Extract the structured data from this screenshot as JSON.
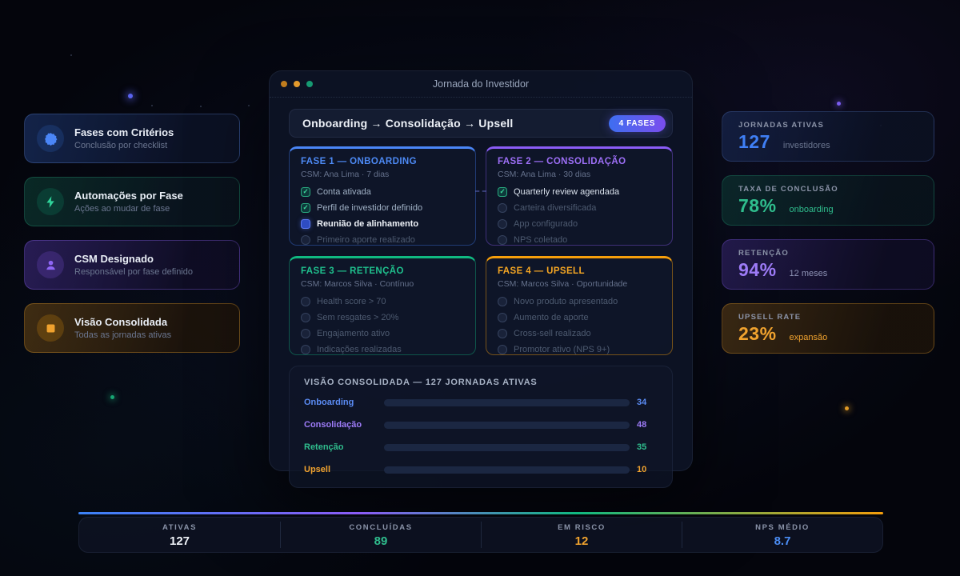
{
  "app": {
    "title": "Jornada do Investidor"
  },
  "colors": {
    "blue": "#3b82f6",
    "purple": "#8b5cf6",
    "green": "#10b981",
    "orange": "#f59e0b"
  },
  "header": {
    "path": "Onboarding → Consolidação → Upsell",
    "badge": "4 FASES"
  },
  "left_panel": {
    "cards": [
      {
        "title": "Fases com Critérios",
        "subtitle": "Conclusão por checklist",
        "icon": "badge-check-icon",
        "accent": "#3b82f6"
      },
      {
        "title": "Automações por Fase",
        "subtitle": "Ações ao mudar de fase",
        "icon": "lightning-icon",
        "accent": "#10b981"
      },
      {
        "title": "CSM Designado",
        "subtitle": "Responsável por fase definido",
        "icon": "person-icon",
        "accent": "#8b5cf6"
      },
      {
        "title": "Visão Consolidada",
        "subtitle": "Todas as jornadas ativas",
        "icon": "square-icon",
        "accent": "#f59e0b"
      }
    ]
  },
  "phases": [
    {
      "title": "FASE 1 — ONBOARDING",
      "csm": "CSM: Ana Lima · 7 dias",
      "accent": "#3b82f6",
      "items": [
        {
          "label": "Conta ativada",
          "state": "done"
        },
        {
          "label": "Perfil de investidor definido",
          "state": "done"
        },
        {
          "label": "Reunião de alinhamento",
          "state": "current"
        },
        {
          "label": "Primeiro aporte realizado",
          "state": "pending"
        }
      ]
    },
    {
      "title": "FASE 2 — CONSOLIDAÇÃO",
      "csm": "CSM: Ana Lima · 30 dias",
      "accent": "#8b5cf6",
      "items": [
        {
          "label": "Quarterly review agendada",
          "state": "done"
        },
        {
          "label": "Carteira diversificada",
          "state": "pending"
        },
        {
          "label": "App configurado",
          "state": "pending"
        },
        {
          "label": "NPS coletado",
          "state": "pending"
        }
      ]
    },
    {
      "title": "FASE 3 — RETENÇÃO",
      "csm": "CSM: Marcos Silva · Contínuo",
      "accent": "#10b981",
      "items": [
        {
          "label": "Health score > 70",
          "state": "pending"
        },
        {
          "label": "Sem resgates > 20%",
          "state": "pending"
        },
        {
          "label": "Engajamento ativo",
          "state": "pending"
        },
        {
          "label": "Indicações realizadas",
          "state": "pending"
        }
      ]
    },
    {
      "title": "FASE 4 — UPSELL",
      "csm": "CSM: Marcos Silva · Oportunidade",
      "accent": "#f59e0b",
      "items": [
        {
          "label": "Novo produto apresentado",
          "state": "pending"
        },
        {
          "label": "Aumento de aporte",
          "state": "pending"
        },
        {
          "label": "Cross-sell realizado",
          "state": "pending"
        },
        {
          "label": "Promotor ativo (NPS 9+)",
          "state": "pending"
        }
      ]
    }
  ],
  "chart_data": {
    "type": "bar",
    "orientation": "horizontal",
    "title": "VISÃO CONSOLIDADA — 127 JORNADAS ATIVAS",
    "categories": [
      "Onboarding",
      "Consolidação",
      "Retenção",
      "Upsell"
    ],
    "values": [
      34,
      48,
      35,
      10
    ],
    "colors": [
      "#3b82f6",
      "#8b5cf6",
      "#10b981",
      "#f59e0b"
    ],
    "total_label": "127 jornadas ativas"
  },
  "right_panel": {
    "stats": [
      {
        "label": "JORNADAS ATIVAS",
        "value": "127",
        "suffix": "investidores",
        "accent": "#3b82f6"
      },
      {
        "label": "TAXA DE CONCLUSÃO",
        "value": "78%",
        "suffix": "onboarding",
        "accent": "#10b981"
      },
      {
        "label": "RETENÇÃO",
        "value": "94%",
        "suffix": "12 meses",
        "accent": "#8b5cf6"
      },
      {
        "label": "UPSELL RATE",
        "value": "23%",
        "suffix": "expansão",
        "accent": "#f59e0b"
      }
    ]
  },
  "footer": {
    "stats": [
      {
        "label": "ATIVAS",
        "value": "127",
        "color": "#eef2f8"
      },
      {
        "label": "CONCLUÍDAS",
        "value": "89",
        "color": "#2fbd8d"
      },
      {
        "label": "EM RISCO",
        "value": "12",
        "color": "#f0a22e"
      },
      {
        "label": "NPS MÉDIO",
        "value": "8.7",
        "color": "#4b8df5"
      }
    ]
  }
}
